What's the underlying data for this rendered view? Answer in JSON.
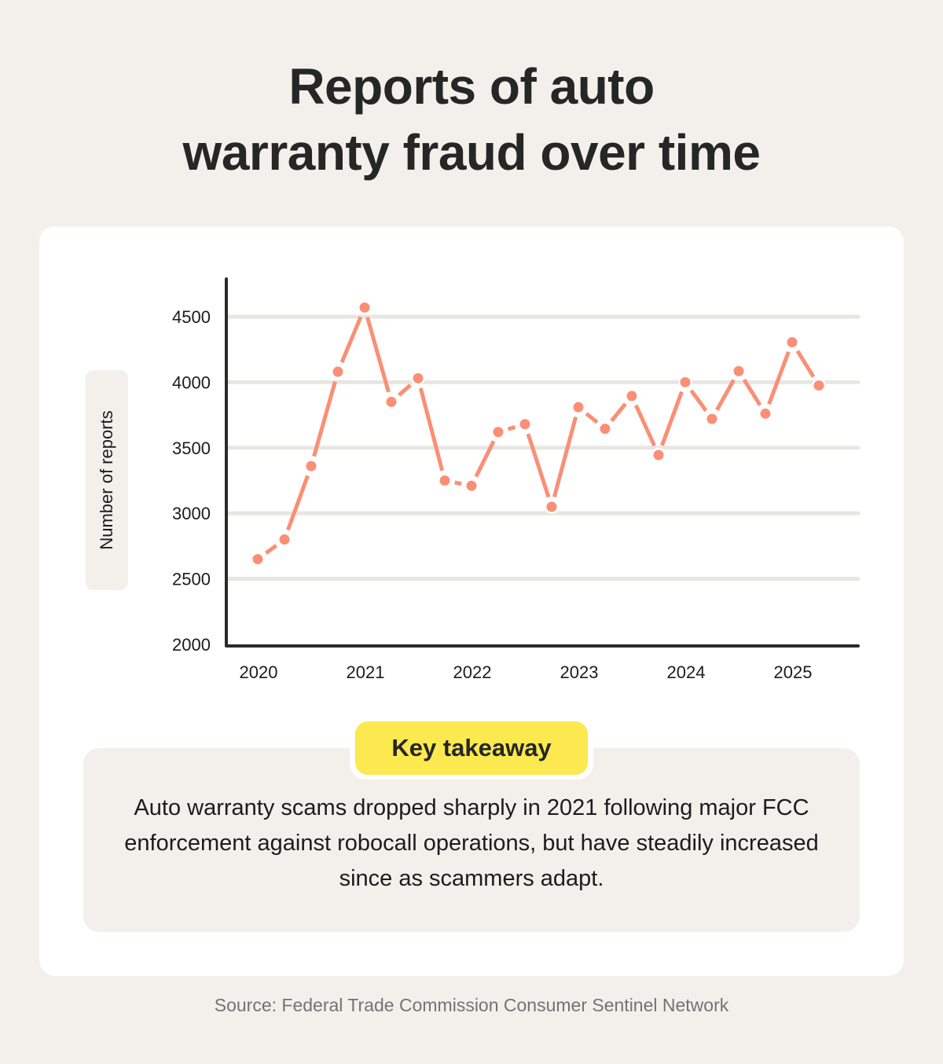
{
  "title_line1": "Reports of auto",
  "title_line2": "warranty fraud over time",
  "source": "Source: Federal Trade Commission Consumer Sentinel Network",
  "takeaway": {
    "label": "Key takeaway",
    "text": "Auto warranty scams dropped sharply in 2021 following major FCC enforcement against robocall operations, but have steadily increased since as scammers adapt."
  },
  "colors": {
    "background": "#f3f0eb",
    "card": "#ffffff",
    "line": "#fa8f76",
    "grid": "#e8e6e1",
    "axis": "#2b2b2b",
    "badge": "#fbe94f"
  },
  "chart_data": {
    "type": "line",
    "title": "Reports of auto warranty fraud over time",
    "xlabel": "",
    "ylabel": "Number of reports",
    "ylim": [
      2000,
      4800
    ],
    "yticks": [
      2000,
      2500,
      3000,
      3500,
      4000,
      4500
    ],
    "xtick_labels": [
      "2020",
      "2021",
      "2022",
      "2023",
      "2024",
      "2025"
    ],
    "grid": "horizontal",
    "legend": null,
    "x": [
      "2020 Q1",
      "2020 Q2",
      "2020 Q3",
      "2020 Q4",
      "2021 Q1",
      "2021 Q2",
      "2021 Q3",
      "2021 Q4",
      "2022 Q1",
      "2022 Q2",
      "2022 Q3",
      "2022 Q4",
      "2023 Q1",
      "2023 Q2",
      "2023 Q3",
      "2023 Q4",
      "2024 Q1",
      "2024 Q2",
      "2024 Q3",
      "2024 Q4",
      "2025 Q1",
      "2025 Q2"
    ],
    "series": [
      {
        "name": "Number of reports",
        "values": [
          2650,
          2800,
          3360,
          4080,
          4570,
          3850,
          4030,
          3250,
          3210,
          3620,
          3680,
          3050,
          3810,
          3645,
          3895,
          3445,
          4000,
          3720,
          4085,
          3760,
          4305,
          3975
        ]
      }
    ]
  }
}
